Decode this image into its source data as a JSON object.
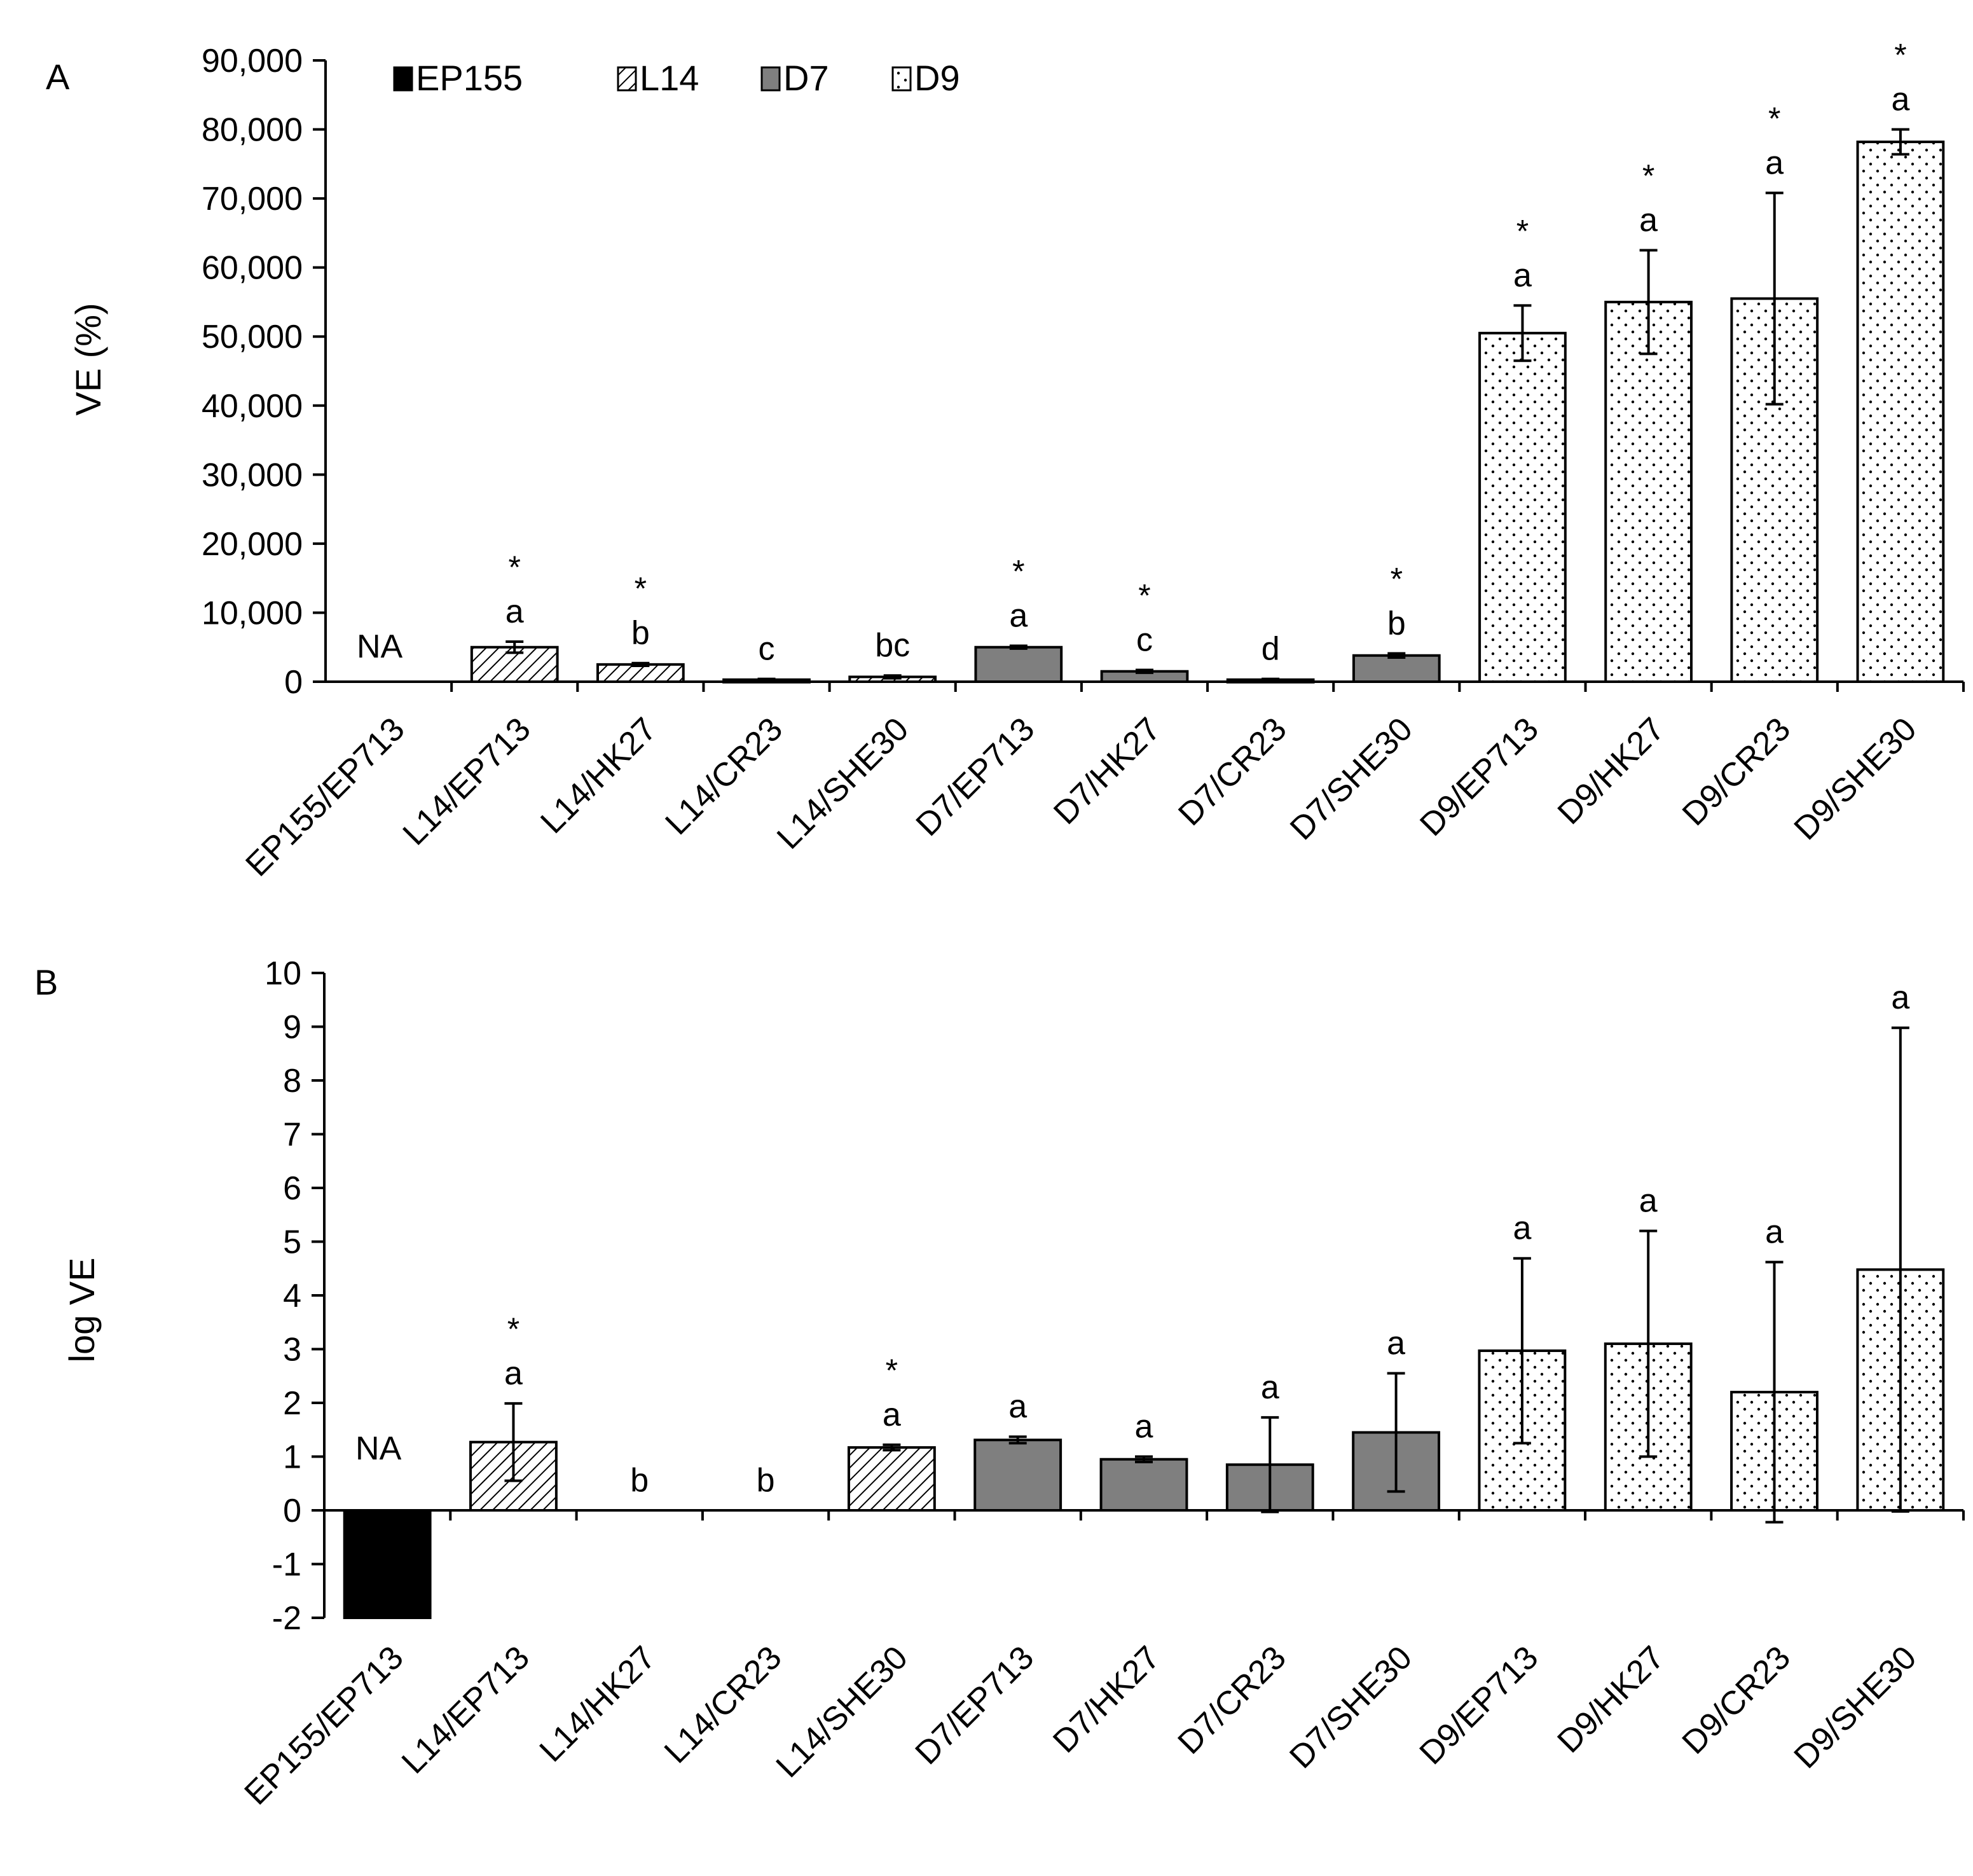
{
  "legend": [
    {
      "name": "EP155",
      "pattern": "solid"
    },
    {
      "name": "L14",
      "pattern": "hatch"
    },
    {
      "name": "D7",
      "pattern": "gray"
    },
    {
      "name": "D9",
      "pattern": "dots"
    }
  ],
  "colors": {
    "solid": "#000000",
    "gray": "#7f7f7f",
    "hatch_bg": "#ffffff",
    "dots_bg": "#ffffff",
    "line": "#000000"
  },
  "chart_data": [
    {
      "panel": "A",
      "type": "bar",
      "ylabel": "VE (%)",
      "ylim": [
        0,
        90000
      ],
      "yticks": [
        0,
        10000,
        20000,
        30000,
        40000,
        50000,
        60000,
        70000,
        80000,
        90000
      ],
      "ytick_labels": [
        "0",
        "10,000",
        "20,000",
        "30,000",
        "40,000",
        "50,000",
        "60,000",
        "70,000",
        "80,000",
        "90,000"
      ],
      "categories": [
        "EP155/EP713",
        "L14/EP713",
        "L14/HK27",
        "L14/CR23",
        "L14/SHE30",
        "D7/EP713",
        "D7/HK27",
        "D7/CR23",
        "D7/SHE30",
        "D9/EP713",
        "D9/HK27",
        "D9/CR23",
        "D9/SHE30"
      ],
      "groups": [
        "EP155",
        "L14",
        "L14",
        "L14",
        "L14",
        "D7",
        "D7",
        "D7",
        "D7",
        "D9",
        "D9",
        "D9",
        "D9"
      ],
      "values": [
        null,
        5000,
        2500,
        300,
        700,
        5000,
        1500,
        300,
        3800,
        50500,
        55000,
        55500,
        78200
      ],
      "errors": [
        null,
        800,
        200,
        100,
        200,
        200,
        200,
        100,
        300,
        4000,
        7500,
        15300,
        1800
      ],
      "sig_letters": [
        "",
        "a",
        "b",
        "c",
        "bc",
        "a",
        "c",
        "d",
        "b",
        "a",
        "a",
        "a",
        "a"
      ],
      "stars": [
        "",
        "*",
        "*",
        "",
        "",
        "*",
        "*",
        "",
        "*",
        "*",
        "*",
        "*",
        "*"
      ],
      "bar_notes": [
        "NA",
        "",
        "",
        "",
        "",
        "",
        "",
        "",
        "",
        "",
        "",
        "",
        ""
      ]
    },
    {
      "panel": "B",
      "type": "bar",
      "ylabel": "log VE",
      "ylim": [
        -2,
        10
      ],
      "yticks": [
        -2,
        -1,
        0,
        1,
        2,
        3,
        4,
        5,
        6,
        7,
        8,
        9,
        10
      ],
      "ytick_labels": [
        "-2",
        "-1",
        "0",
        "1",
        "2",
        "3",
        "4",
        "5",
        "6",
        "7",
        "8",
        "9",
        "10"
      ],
      "categories": [
        "EP155/EP713",
        "L14/EP713",
        "L14/HK27",
        "L14/CR23",
        "L14/SHE30",
        "D7/EP713",
        "D7/HK27",
        "D7/CR23",
        "D7/SHE30",
        "D9/EP713",
        "D9/HK27",
        "D9/CR23",
        "D9/SHE30"
      ],
      "groups": [
        "EP155",
        "L14",
        "L14",
        "L14",
        "L14",
        "D7",
        "D7",
        "D7",
        "D7",
        "D9",
        "D9",
        "D9",
        "D9"
      ],
      "values": [
        -2.0,
        1.27,
        0,
        0,
        1.17,
        1.31,
        0.95,
        0.85,
        1.45,
        2.97,
        3.1,
        2.2,
        4.48
      ],
      "errors": [
        0,
        0.72,
        0,
        0,
        0.05,
        0.06,
        0.05,
        0.88,
        1.1,
        1.72,
        2.1,
        2.42,
        4.5
      ],
      "sig_letters": [
        "",
        "a",
        "b",
        "b",
        "a",
        "a",
        "a",
        "a",
        "a",
        "a",
        "a",
        "a",
        "a"
      ],
      "stars": [
        "",
        "*",
        "",
        "",
        "*",
        "",
        "",
        "",
        "",
        "",
        "",
        "",
        ""
      ],
      "bar_notes": [
        "NA",
        "",
        "",
        "",
        "",
        "",
        "",
        "",
        "",
        "",
        "",
        "",
        ""
      ]
    }
  ]
}
